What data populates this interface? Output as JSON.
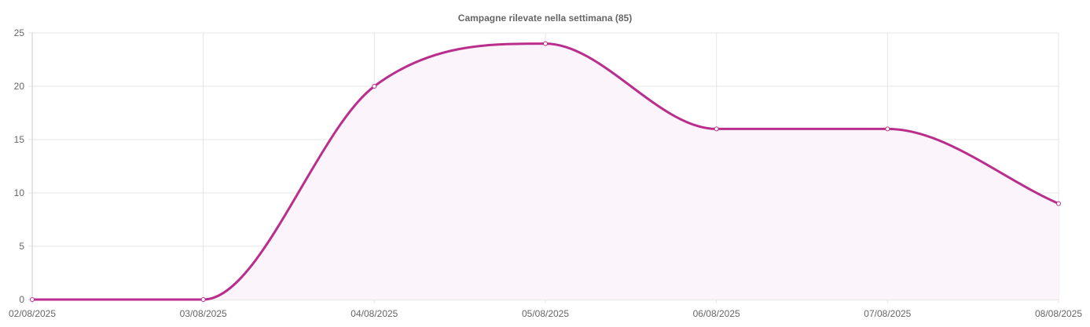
{
  "chart_data": {
    "type": "line",
    "title": "Campagne rilevate nella settimana (85)",
    "xlabel": "",
    "ylabel": "",
    "categories": [
      "02/08/2025",
      "03/08/2025",
      "04/08/2025",
      "05/08/2025",
      "06/08/2025",
      "07/08/2025",
      "08/08/2025"
    ],
    "series": [
      {
        "values": [
          0,
          0,
          20,
          24,
          16,
          16,
          9
        ]
      }
    ],
    "ylim": [
      0,
      25
    ],
    "yticks": [
      0,
      5,
      10,
      15,
      20,
      25
    ],
    "grid": true,
    "legend": "none",
    "line_color": "#b92e8c",
    "fill_color": "#fbf4fa",
    "grid_color": "#e6e6e6",
    "axis_color": "#cccccc",
    "text_color": "#666666",
    "curve": "smooth",
    "filled": true
  }
}
